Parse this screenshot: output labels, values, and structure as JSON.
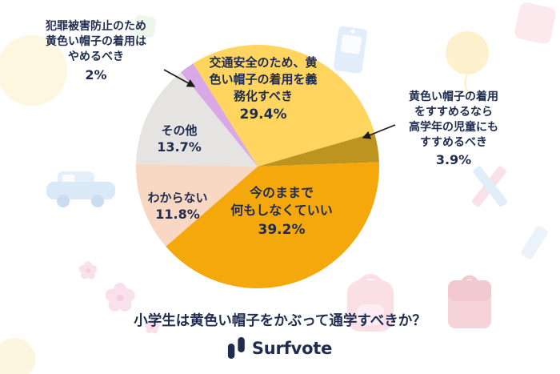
{
  "page": {
    "brand": "Surfvote",
    "background": "#FFFFFF",
    "text_color": "#1F2C4F"
  },
  "chart_data": {
    "type": "pie",
    "title": "小学生は黄色い帽子をかぶって通学すべきか？",
    "legend_position": "none",
    "start_angle_deg": -32,
    "slices": [
      {
        "label": "交通安全のため、黄色い帽子の着用を義務化すべき",
        "label_lines": [
          "交通安全のため、黄",
          "色い帽子の着用を義",
          "務化すべき"
        ],
        "value": 29.4,
        "display": "29.4%",
        "color": "#FFD45F",
        "label_placement": "inside"
      },
      {
        "label": "黄色い帽子の着用をすすめるなら高学年の児童にもすすめるべき",
        "label_lines": [
          "黄色い帽子の着用",
          "をすすめるなら",
          "高学年の児童にも",
          "すすめるべき"
        ],
        "value": 3.9,
        "display": "3.9%",
        "color": "#BD941F",
        "label_placement": "outside-right-arrow"
      },
      {
        "label": "今のままで何もしなくていい",
        "label_lines": [
          "今のままで",
          "何もしなくていい"
        ],
        "value": 39.2,
        "display": "39.2%",
        "color": "#F5A80C",
        "label_placement": "inside"
      },
      {
        "label": "わからない",
        "label_lines": [
          "わからない"
        ],
        "value": 11.8,
        "display": "11.8%",
        "color": "#F8D7C3",
        "label_placement": "inside"
      },
      {
        "label": "その他",
        "label_lines": [
          "その他"
        ],
        "value": 13.7,
        "display": "13.7%",
        "color": "#E5E4E3",
        "label_placement": "inside"
      },
      {
        "label": "犯罪被害防止のため黄色い帽子の着用はやめるべき",
        "label_lines": [
          "犯罪被害防止のため",
          "黄色い帽子の着用は",
          "やめるべき"
        ],
        "value": 2,
        "display": "2%",
        "color": "#D9A9E6",
        "label_placement": "outside-left-arrow"
      }
    ]
  },
  "decorations": [
    "car-icon",
    "balloon-icon",
    "name-badge-icon",
    "flower-icon",
    "backpack-icon",
    "satchel-icon",
    "pencil-icon"
  ]
}
